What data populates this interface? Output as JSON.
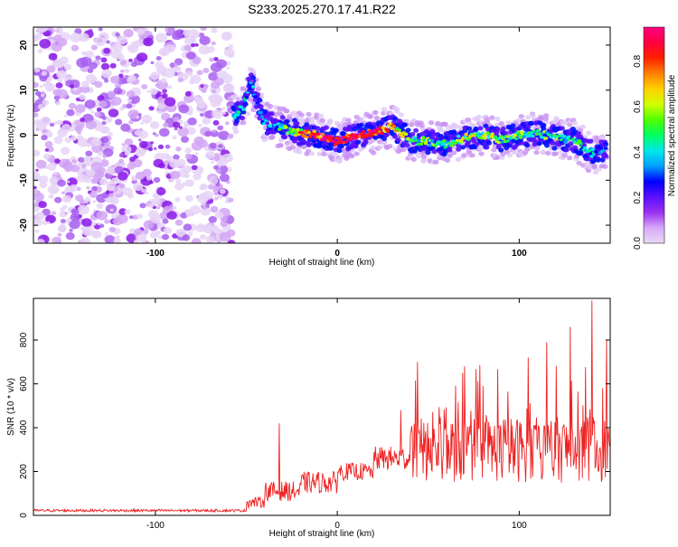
{
  "title": "S233.2025.270.17.41.R22",
  "chart_data": [
    {
      "type": "heatmap",
      "title": "S233.2025.270.17.41.R22",
      "xlabel": "Height of straight line (km)",
      "ylabel": "Frequency (Hz)",
      "xlim": [
        -167,
        150
      ],
      "ylim": [
        -24,
        24
      ],
      "x_ticks": [
        "-100",
        "0",
        "100"
      ],
      "x_tick_values": [
        -100,
        0,
        100
      ],
      "y_ticks": [
        "20",
        "10",
        "0",
        "-10",
        "-20"
      ],
      "y_tick_values": [
        20,
        10,
        0,
        -10,
        -20
      ],
      "noise_region_x": [
        -167,
        -58
      ],
      "ridge": {
        "description_points": [
          {
            "x": -57,
            "y": 4.5,
            "amp": 0.45
          },
          {
            "x": -52,
            "y": 6,
            "amp": 0.35
          },
          {
            "x": -47,
            "y": 12,
            "amp": 0.3
          },
          {
            "x": -44,
            "y": 7,
            "amp": 0.3
          },
          {
            "x": -40,
            "y": 3,
            "amp": 0.3
          },
          {
            "x": -30,
            "y": 1.5,
            "amp": 0.45
          },
          {
            "x": -20,
            "y": 0.5,
            "amp": 0.6
          },
          {
            "x": -10,
            "y": 0,
            "amp": 0.85
          },
          {
            "x": 0,
            "y": -1.5,
            "amp": 0.9
          },
          {
            "x": 10,
            "y": 0,
            "amp": 0.9
          },
          {
            "x": 20,
            "y": 0.5,
            "amp": 0.85
          },
          {
            "x": 30,
            "y": 2,
            "amp": 0.7
          },
          {
            "x": 40,
            "y": -1,
            "amp": 0.5
          },
          {
            "x": 50,
            "y": -1.5,
            "amp": 0.5
          },
          {
            "x": 60,
            "y": -2,
            "amp": 0.45
          },
          {
            "x": 70,
            "y": -0.5,
            "amp": 0.55
          },
          {
            "x": 80,
            "y": 0,
            "amp": 0.55
          },
          {
            "x": 90,
            "y": -1,
            "amp": 0.5
          },
          {
            "x": 100,
            "y": 0,
            "amp": 0.5
          },
          {
            "x": 110,
            "y": 0.5,
            "amp": 0.45
          },
          {
            "x": 120,
            "y": -0.5,
            "amp": 0.45
          },
          {
            "x": 130,
            "y": -1,
            "amp": 0.4
          },
          {
            "x": 140,
            "y": -4,
            "amp": 0.35
          },
          {
            "x": 148,
            "y": -3,
            "amp": 0.35
          }
        ]
      },
      "colorbar": {
        "label": "Normalized spectral amplitude",
        "range": [
          0,
          0.95
        ],
        "ticks": [
          "0.0",
          "0.2",
          "0.4",
          "0.6",
          "0.8"
        ],
        "tick_values": [
          0.0,
          0.2,
          0.4,
          0.6,
          0.8
        ],
        "colors": [
          "#e8d8f5",
          "#d8a8f8",
          "#9a30f0",
          "#5a10ff",
          "#0000ff",
          "#00a0ff",
          "#00e8e8",
          "#00ff60",
          "#50ff00",
          "#d0ff00",
          "#ffd000",
          "#ff8000",
          "#ff2000",
          "#ff0040",
          "#ff0080"
        ]
      }
    },
    {
      "type": "line",
      "xlabel": "Height of straight line (km)",
      "ylabel": "SNR (10 * v/v)",
      "xlim": [
        -167,
        150
      ],
      "ylim": [
        0,
        990
      ],
      "x_ticks": [
        "-100",
        "0",
        "100"
      ],
      "x_tick_values": [
        -100,
        0,
        100
      ],
      "y_ticks": [
        "0",
        "200",
        "400",
        "600",
        "800"
      ],
      "y_tick_values": [
        0,
        200,
        400,
        600,
        800
      ],
      "color": "#ee2222",
      "segments": [
        {
          "x_range": [
            -167,
            -50
          ],
          "baseline": 22,
          "spread": 12
        },
        {
          "x_range": [
            -50,
            -40
          ],
          "baseline": 60,
          "spread": 50
        },
        {
          "x_range": [
            -40,
            -20
          ],
          "baseline": 110,
          "spread": 90
        },
        {
          "x_range": [
            -20,
            0
          ],
          "baseline": 150,
          "spread": 100
        },
        {
          "x_range": [
            0,
            20
          ],
          "baseline": 200,
          "spread": 80
        },
        {
          "x_range": [
            20,
            40
          ],
          "baseline": 260,
          "spread": 110
        },
        {
          "x_range": [
            40,
            150
          ],
          "baseline": 300,
          "spread": 300
        }
      ],
      "peaks": [
        {
          "x": -32,
          "y": 420
        },
        {
          "x": 35,
          "y": 480
        },
        {
          "x": 44,
          "y": 700
        },
        {
          "x": 70,
          "y": 680
        },
        {
          "x": 105,
          "y": 720
        },
        {
          "x": 115,
          "y": 790
        },
        {
          "x": 128,
          "y": 860
        },
        {
          "x": 140,
          "y": 980
        },
        {
          "x": 148,
          "y": 800
        }
      ]
    }
  ]
}
